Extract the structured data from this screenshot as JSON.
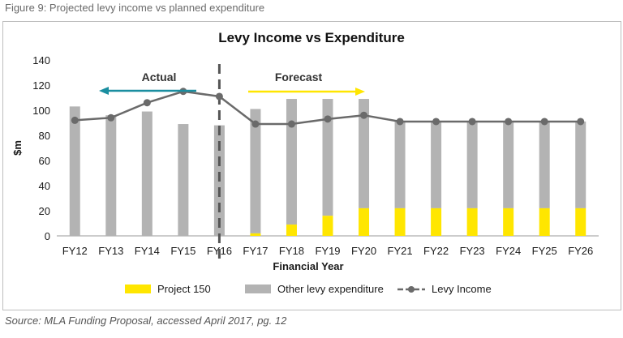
{
  "figure_caption": "Figure 9: Projected levy income vs planned expenditure",
  "source_note": "Source: MLA Funding Proposal, accessed April 2017, pg. 12",
  "colors": {
    "project150": "#ffe600",
    "other": "#b3b3b3",
    "levy_line": "#6a6a6a",
    "actual_arrow": "#1a8ea0",
    "forecast_arrow": "#ffe600"
  },
  "chart_data": {
    "type": "bar",
    "title": "Levy Income vs Expenditure",
    "xlabel": "Financial Year",
    "ylabel": "$m",
    "ylim": [
      0,
      140
    ],
    "yticks": [
      0,
      20,
      40,
      60,
      80,
      100,
      120,
      140
    ],
    "grid": false,
    "legend_position": "bottom",
    "categories": [
      "FY12",
      "FY13",
      "FY14",
      "FY15",
      "FY16",
      "FY17",
      "FY18",
      "FY19",
      "FY20",
      "FY21",
      "FY22",
      "FY23",
      "FY24",
      "FY25",
      "FY26"
    ],
    "series": [
      {
        "name": "Project 150",
        "kind": "stacked-bar",
        "values": [
          0,
          0,
          0,
          0,
          0,
          2,
          9,
          16,
          22,
          22,
          22,
          22,
          22,
          22,
          22
        ]
      },
      {
        "name": "Other levy expenditure",
        "kind": "stacked-bar",
        "values": [
          103,
          96,
          99,
          89,
          88,
          99,
          100,
          93,
          87,
          69,
          69,
          69,
          69,
          69,
          69
        ]
      },
      {
        "name": "Levy Income",
        "kind": "line",
        "values": [
          92,
          94,
          106,
          115,
          111,
          89,
          89,
          93,
          96,
          91,
          91,
          91,
          91,
          91,
          91
        ]
      }
    ],
    "annotations": [
      {
        "text": "Actual",
        "arrow_direction": "left"
      },
      {
        "text": "Forecast",
        "arrow_direction": "right"
      }
    ],
    "divider_between": [
      "FY15",
      "FY17"
    ]
  }
}
